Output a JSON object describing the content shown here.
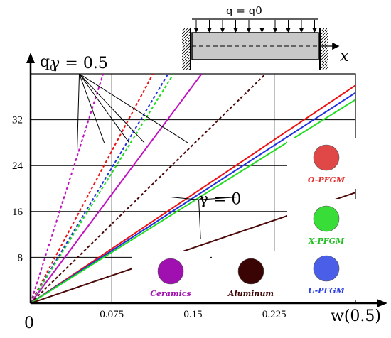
{
  "chart_data": {
    "type": "line",
    "xlabel": "w(0.5)",
    "ylabel": "q0",
    "origin_label": "0",
    "x_ticks": [
      "0.075",
      "0.15",
      "0.225"
    ],
    "y_ticks": [
      "8",
      "16",
      "24",
      "32"
    ],
    "xlim": [
      0,
      0.3
    ],
    "ylim": [
      0,
      40
    ],
    "grid": true,
    "inset": {
      "load_label": "q = q0",
      "axis_label": "x"
    },
    "annotations": [
      {
        "text": "γ = 0.5",
        "x": 0.045,
        "y": 41.0,
        "targets": [
          [
            0.043,
            26.5
          ],
          [
            0.068,
            28.0
          ],
          [
            0.091,
            28.0
          ],
          [
            0.105,
            28.0
          ],
          [
            0.145,
            28.0
          ]
        ]
      },
      {
        "text": "γ = 0",
        "x": 0.175,
        "y": 17.3,
        "targets": [
          [
            0.13,
            18.5
          ],
          [
            0.16,
            18.5
          ],
          [
            0.19,
            18.5
          ],
          [
            0.157,
            11.2
          ]
        ]
      }
    ],
    "series": [
      {
        "color": "#c010c0",
        "dashed": true,
        "values": [
          [
            0,
            0
          ],
          [
            0.067,
            40
          ]
        ]
      },
      {
        "color": "#ee1010",
        "dashed": true,
        "values": [
          [
            0,
            0
          ],
          [
            0.113,
            40
          ]
        ]
      },
      {
        "color": "#2030e0",
        "dashed": true,
        "values": [
          [
            0,
            0
          ],
          [
            0.127,
            40
          ]
        ]
      },
      {
        "color": "#20dd20",
        "dashed": true,
        "values": [
          [
            0,
            0
          ],
          [
            0.132,
            40
          ]
        ]
      },
      {
        "color": "#c010c0",
        "dashed": false,
        "values": [
          [
            0,
            0
          ],
          [
            0.158,
            40
          ]
        ]
      },
      {
        "color": "#4a0808",
        "dashed": true,
        "values": [
          [
            0,
            0
          ],
          [
            0.217,
            40
          ]
        ]
      },
      {
        "color": "#ee1010",
        "dashed": false,
        "values": [
          [
            0,
            0
          ],
          [
            0.3,
            38.0
          ]
        ]
      },
      {
        "color": "#2030e0",
        "dashed": false,
        "values": [
          [
            0,
            0
          ],
          [
            0.3,
            36.7
          ]
        ]
      },
      {
        "color": "#20dd20",
        "dashed": false,
        "values": [
          [
            0,
            0
          ],
          [
            0.3,
            35.5
          ]
        ]
      },
      {
        "color": "#4a0808",
        "dashed": false,
        "values": [
          [
            0,
            0
          ],
          [
            0.3,
            19.3
          ]
        ]
      }
    ],
    "legend": [
      {
        "label": "O-PFGM",
        "color": "#e04848",
        "text_color": "#e23030",
        "position": "right"
      },
      {
        "label": "X-PFGM",
        "color": "#38dd38",
        "text_color": "#22c022",
        "position": "right"
      },
      {
        "label": "U-PFGM",
        "color": "#4a5ee8",
        "text_color": "#2a3ee0",
        "position": "right"
      },
      {
        "label": "Ceramics",
        "color": "#a010b0",
        "text_color": "#a010b0",
        "position": "bottom"
      },
      {
        "label": "Aluminum",
        "color": "#3a0404",
        "text_color": "#3a0404",
        "position": "bottom"
      }
    ]
  }
}
